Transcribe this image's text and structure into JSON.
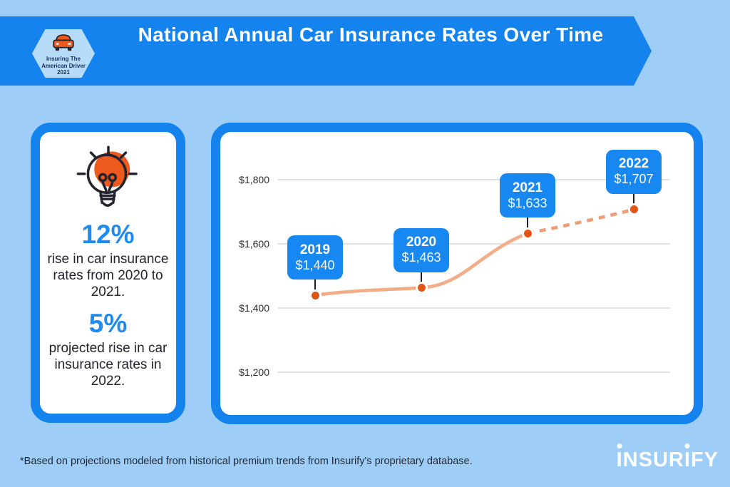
{
  "colors": {
    "background": "#9ECDF8",
    "accent_blue": "#1583EE",
    "label_box_blue": "#1787F2",
    "stat_blue": "#1E8BF0",
    "icon_orange": "#EE5A1D",
    "line_solid": "#F2AC86",
    "line_dashed": "#EE9D76",
    "point_orange": "#E05514"
  },
  "header": {
    "badge": {
      "icon": "car-icon",
      "line1": "Insuring The",
      "line2": "American Driver",
      "line3": "2021"
    },
    "title": "National Annual Car Insurance Rates Over Time"
  },
  "stats_card": {
    "icon": "lightbulb-icon",
    "stats": [
      {
        "value": "12%",
        "description": "rise in car insurance rates from 2020 to 2021."
      },
      {
        "value": "5%",
        "description": "projected rise in car insurance rates in 2022."
      }
    ]
  },
  "chart_data": {
    "type": "line",
    "title": "National Annual Car Insurance Rates Over Time",
    "x": [
      "2019",
      "2020",
      "2021",
      "2022"
    ],
    "values": [
      1440,
      1463,
      1633,
      1707
    ],
    "point_labels": [
      "$1,440",
      "$1,463",
      "$1,633",
      "$1,707"
    ],
    "projected_segment": [
      "2021",
      "2022"
    ],
    "y_ticks": [
      {
        "value": 1800,
        "label": "$1,800"
      },
      {
        "value": 1600,
        "label": "$1,600"
      },
      {
        "value": 1400,
        "label": "$1,400"
      },
      {
        "value": 1200,
        "label": "$1,200"
      }
    ],
    "ylim": [
      1100,
      1900
    ],
    "grid": "horizontal",
    "legend": "none",
    "line_styles": {
      "2019-2021": "solid",
      "2021-2022": "dashed (projection)"
    }
  },
  "footer": {
    "note": "*Based on projections modeled from historical premium trends from Insurify's proprietary database.",
    "logo": "INSURIFY"
  }
}
